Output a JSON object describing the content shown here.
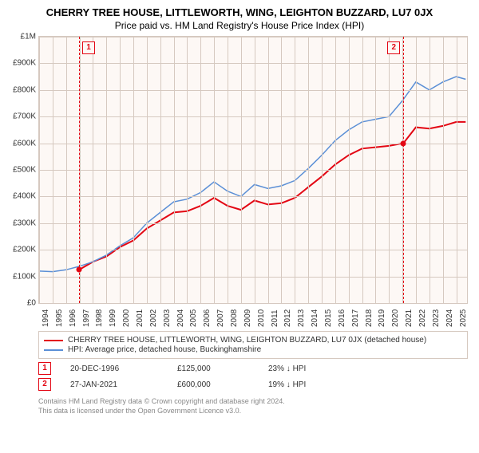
{
  "title": "CHERRY TREE HOUSE, LITTLEWORTH, WING, LEIGHTON BUZZARD, LU7 0JX",
  "subtitle": "Price paid vs. HM Land Registry's House Price Index (HPI)",
  "chart": {
    "type": "line",
    "background_color": "#fdf8f5",
    "grid_color": "#d6c9c0",
    "ylim": [
      0,
      1000000
    ],
    "ytick_step": 100000,
    "yticks": [
      {
        "v": 0,
        "label": "£0"
      },
      {
        "v": 100000,
        "label": "£100K"
      },
      {
        "v": 200000,
        "label": "£200K"
      },
      {
        "v": 300000,
        "label": "£300K"
      },
      {
        "v": 400000,
        "label": "£400K"
      },
      {
        "v": 500000,
        "label": "£500K"
      },
      {
        "v": 600000,
        "label": "£600K"
      },
      {
        "v": 700000,
        "label": "£700K"
      },
      {
        "v": 800000,
        "label": "£800K"
      },
      {
        "v": 900000,
        "label": "£900K"
      },
      {
        "v": 1000000,
        "label": "£1M"
      }
    ],
    "xlim": [
      1994,
      2025.8
    ],
    "xticks": [
      1994,
      1995,
      1996,
      1997,
      1998,
      1999,
      2000,
      2001,
      2002,
      2003,
      2004,
      2005,
      2006,
      2007,
      2008,
      2009,
      2010,
      2011,
      2012,
      2013,
      2014,
      2015,
      2016,
      2017,
      2018,
      2019,
      2020,
      2021,
      2022,
      2023,
      2024,
      2025
    ],
    "series": [
      {
        "name": "price_paid",
        "color": "#e30613",
        "line_width": 2,
        "data": [
          [
            1996.97,
            125000
          ],
          [
            1998,
            155000
          ],
          [
            1999,
            175000
          ],
          [
            2000,
            210000
          ],
          [
            2001,
            235000
          ],
          [
            2002,
            280000
          ],
          [
            2003,
            310000
          ],
          [
            2004,
            340000
          ],
          [
            2005,
            345000
          ],
          [
            2006,
            365000
          ],
          [
            2007,
            395000
          ],
          [
            2008,
            365000
          ],
          [
            2009,
            350000
          ],
          [
            2010,
            385000
          ],
          [
            2011,
            370000
          ],
          [
            2012,
            375000
          ],
          [
            2013,
            395000
          ],
          [
            2014,
            435000
          ],
          [
            2015,
            475000
          ],
          [
            2016,
            520000
          ],
          [
            2017,
            555000
          ],
          [
            2018,
            580000
          ],
          [
            2019,
            585000
          ],
          [
            2020,
            590000
          ],
          [
            2021.07,
            600000
          ],
          [
            2022,
            660000
          ],
          [
            2023,
            655000
          ],
          [
            2024,
            665000
          ],
          [
            2025,
            680000
          ],
          [
            2025.7,
            680000
          ]
        ]
      },
      {
        "name": "hpi",
        "color": "#5b8fd6",
        "line_width": 1.5,
        "data": [
          [
            1994,
            120000
          ],
          [
            1995,
            118000
          ],
          [
            1996,
            125000
          ],
          [
            1997,
            138000
          ],
          [
            1998,
            155000
          ],
          [
            1999,
            180000
          ],
          [
            2000,
            215000
          ],
          [
            2001,
            245000
          ],
          [
            2002,
            300000
          ],
          [
            2003,
            340000
          ],
          [
            2004,
            380000
          ],
          [
            2005,
            390000
          ],
          [
            2006,
            415000
          ],
          [
            2007,
            455000
          ],
          [
            2008,
            420000
          ],
          [
            2009,
            400000
          ],
          [
            2010,
            445000
          ],
          [
            2011,
            430000
          ],
          [
            2012,
            440000
          ],
          [
            2013,
            460000
          ],
          [
            2014,
            505000
          ],
          [
            2015,
            555000
          ],
          [
            2016,
            610000
          ],
          [
            2017,
            650000
          ],
          [
            2018,
            680000
          ],
          [
            2019,
            690000
          ],
          [
            2020,
            700000
          ],
          [
            2021,
            760000
          ],
          [
            2022,
            830000
          ],
          [
            2023,
            800000
          ],
          [
            2024,
            830000
          ],
          [
            2025,
            850000
          ],
          [
            2025.7,
            840000
          ]
        ]
      }
    ],
    "markers": [
      {
        "n": "1",
        "x": 1996.97,
        "y": 125000,
        "color": "#e30613"
      },
      {
        "n": "2",
        "x": 2021.07,
        "y": 600000,
        "color": "#e30613"
      }
    ]
  },
  "legend": {
    "items": [
      {
        "color": "#e30613",
        "label": "CHERRY TREE HOUSE, LITTLEWORTH, WING, LEIGHTON BUZZARD, LU7 0JX (detached house)"
      },
      {
        "color": "#5b8fd6",
        "label": "HPI: Average price, detached house, Buckinghamshire"
      }
    ]
  },
  "transactions": [
    {
      "n": "1",
      "color": "#e30613",
      "date": "20-DEC-1996",
      "price": "£125,000",
      "delta": "23% ↓ HPI"
    },
    {
      "n": "2",
      "color": "#e30613",
      "date": "27-JAN-2021",
      "price": "£600,000",
      "delta": "19% ↓ HPI"
    }
  ],
  "attribution": {
    "line1": "Contains HM Land Registry data © Crown copyright and database right 2024.",
    "line2": "This data is licensed under the Open Government Licence v3.0."
  }
}
